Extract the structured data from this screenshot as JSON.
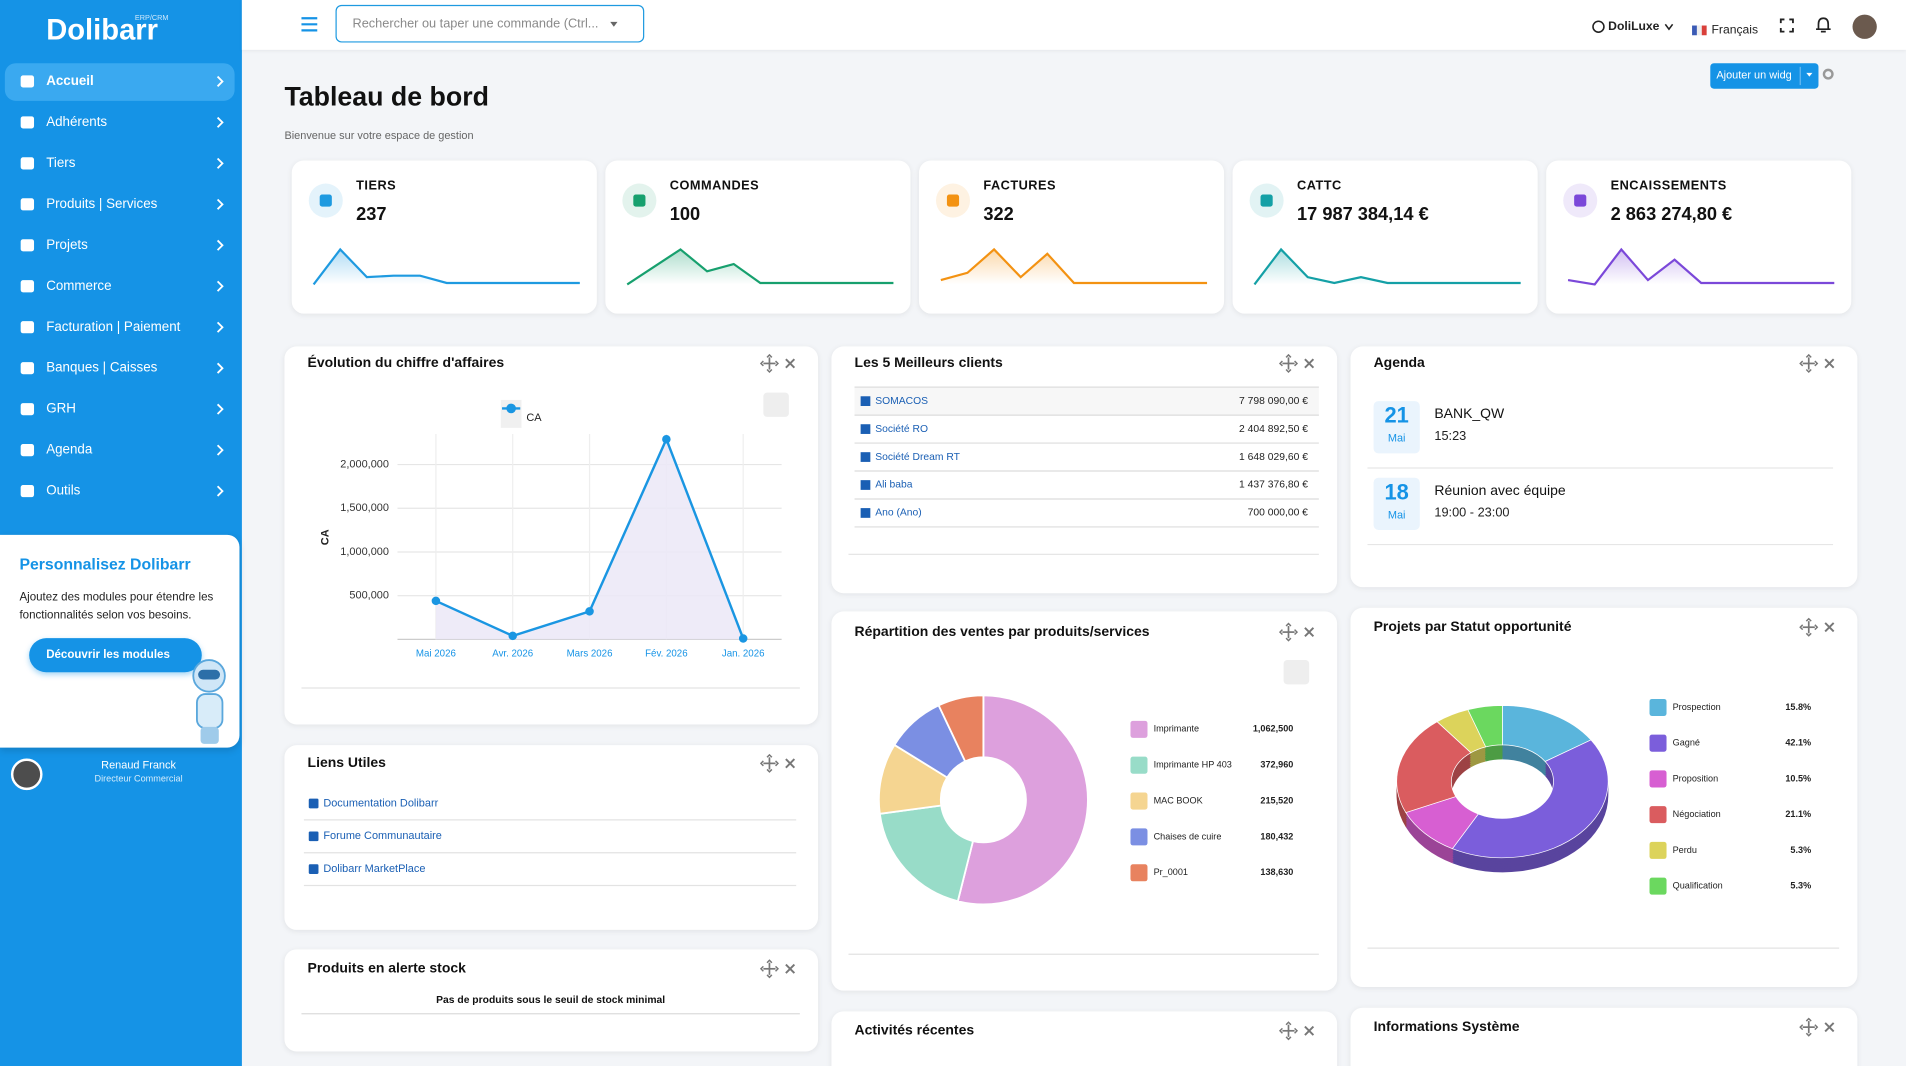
{
  "sidebar": {
    "logo": "Dolibarr",
    "logo_tag": "ERP/CRM",
    "menu": [
      "Accueil",
      "Adhérents",
      "Tiers",
      "Produits | Services",
      "Projets",
      "Commerce",
      "Facturation | Paiement",
      "Banques | Caisses",
      "GRH",
      "Agenda",
      "Outils"
    ],
    "promo": {
      "title": "Personnalisez Dolibarr",
      "text": "Ajoutez des modules pour étendre les fonctionnalités selon vos besoins.",
      "button": "Découvrir les modules"
    },
    "user": {
      "name": "Renaud Franck",
      "role": "Directeur Commercial"
    }
  },
  "topbar": {
    "search": "Rechercher ou taper une commande (Ctrl...",
    "entity": "DoliLuxe",
    "language": "Français"
  },
  "header": {
    "title": "Tableau de bord",
    "subtitle": "Bienvenue sur votre espace de gestion",
    "add_widget": "Ajouter un widg"
  },
  "kpis": [
    {
      "label": "TIERS",
      "value": 237,
      "color": "#1e9ae0",
      "trend": [
        0,
        24,
        5,
        6,
        6,
        1,
        1,
        1,
        1,
        1,
        1
      ]
    },
    {
      "label": "COMMANDES",
      "value": 100,
      "color": "#17a06e",
      "trend": [
        0,
        12,
        24,
        9,
        14,
        1,
        1,
        1,
        1,
        1,
        1
      ]
    },
    {
      "label": "FACTURES",
      "value": 322,
      "color": "#f39212",
      "trend": [
        3,
        8,
        24,
        5,
        21,
        1,
        1,
        1,
        1,
        1,
        1
      ]
    },
    {
      "label": "CATTC",
      "value": "17 987 384,14 €",
      "color": "#14a0a6",
      "trend": [
        0,
        24,
        5,
        1,
        5,
        1,
        1,
        1,
        1,
        1,
        1
      ]
    },
    {
      "label": "ENCAISSEMENTS",
      "value": "2 863 274,80 €",
      "color": "#7b48d9",
      "trend": [
        3,
        0,
        24,
        3,
        17,
        1,
        1,
        1,
        1,
        1,
        1
      ]
    }
  ],
  "widgets": {
    "revenue": {
      "title": "Évolution du chiffre d'affaires",
      "chart_data": {
        "type": "line",
        "y_label": "CA",
        "categories": [
          "Mai 2026",
          "Avr. 2026",
          "Mars 2026",
          "Fév. 2026",
          "Jan. 2026"
        ],
        "series": [
          {
            "name": "CA",
            "color": "#1a96e2",
            "values": [
              440000,
              40000,
              320000,
              2290000,
              10000
            ]
          }
        ],
        "ylim": [
          0,
          2350000
        ],
        "yticks": [
          {
            "value": 500000,
            "label": "500,000"
          },
          {
            "value": 1000000,
            "label": "1,000,000"
          },
          {
            "value": 1500000,
            "label": "1,500,000"
          },
          {
            "value": 2000000,
            "label": "2,000,000"
          }
        ],
        "grid": true
      }
    },
    "top_clients": {
      "title": "Les 5 Meilleurs clients",
      "rows": [
        [
          "SOMACOS",
          "7 798 090,00 €"
        ],
        [
          "Société RO",
          "2 404 892,50 €"
        ],
        [
          "Société Dream RT",
          "1 648 029,60 €"
        ],
        [
          "Ali baba",
          "1 437 376,80 €"
        ],
        [
          "Ano (Ano)",
          "700 000,00 €"
        ]
      ]
    },
    "agenda": {
      "title": "Agenda",
      "events": [
        {
          "day": "21",
          "month": "Mai",
          "title": "BANK_QW",
          "time": "15:23"
        },
        {
          "day": "18",
          "month": "Mai",
          "title": "Réunion avec équipe",
          "time": "19:00 - 23:00"
        }
      ]
    },
    "sales": {
      "title": "Répartition des ventes par produits/services",
      "chart_data": {
        "type": "donut",
        "categories": [
          "Imprimante",
          "Imprimante HP 403",
          "MAC BOOK",
          "Chaises de cuire",
          "Pr_0001"
        ],
        "values": [
          1062500,
          372960,
          215520,
          180432,
          138630
        ],
        "value_labels": [
          "1,062,500",
          "372,960",
          "215,520",
          "180,432",
          "138,630"
        ],
        "colors": [
          "#dda0dd",
          "#98dcc8",
          "#f5d591",
          "#7b8fe3",
          "#e8825f"
        ]
      }
    },
    "projects": {
      "title": "Projets par Statut opportunité",
      "chart_data": {
        "type": "donut3d",
        "categories": [
          "Prospection",
          "Gagné",
          "Proposition",
          "Négociation",
          "Perdu",
          "Qualification"
        ],
        "values": [
          15.8,
          42.1,
          10.5,
          21.1,
          5.3,
          5.3
        ],
        "value_labels": [
          "15.8%",
          "42.1%",
          "10.5%",
          "21.1%",
          "5.3%",
          "5.3%"
        ],
        "colors": [
          "#5ab5dc",
          "#7b5edb",
          "#d75fd2",
          "#da5c5f",
          "#dcd35b",
          "#6bd85f"
        ]
      }
    },
    "links": {
      "title": "Liens Utiles",
      "items": [
        "Documentation Dolibarr",
        "Forume Communautaire",
        "Dolibarr MarketPlace"
      ]
    },
    "stock": {
      "title": "Produits en alerte stock",
      "empty": "Pas de produits sous le seuil de stock minimal"
    },
    "activities": {
      "title": "Activités récentes"
    },
    "system": {
      "title": "Informations Système"
    }
  }
}
